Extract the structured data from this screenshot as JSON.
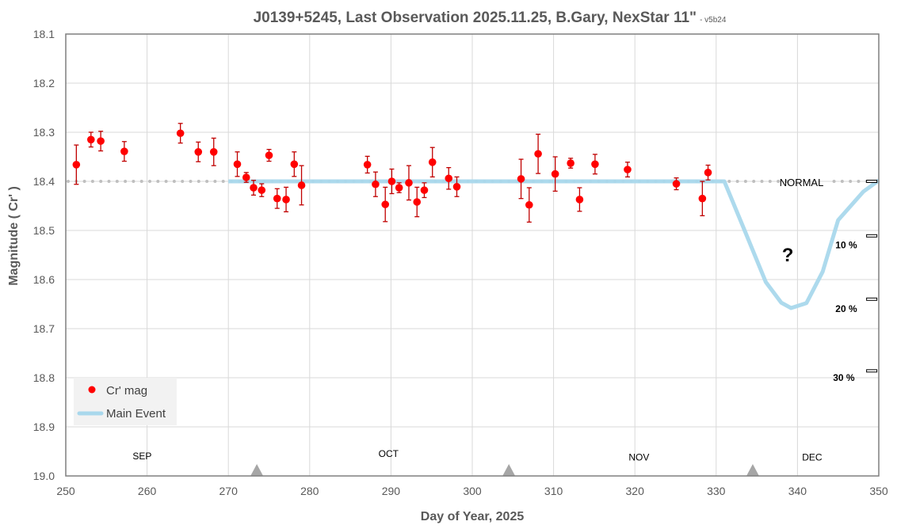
{
  "chart_data": {
    "type": "scatter",
    "title": "J0139+5245, Last Observation 2025.11.25, B.Gary, NexStar 11\"",
    "title_suffix": "- v5b24",
    "xlabel": "Day of Year, 2025",
    "ylabel": "Magnitude ( Cr' )",
    "xlim": [
      250,
      350
    ],
    "ylim": [
      18.1,
      19.0
    ],
    "y_inverted": true,
    "x_ticks": [
      250,
      260,
      270,
      280,
      290,
      300,
      310,
      320,
      330,
      340,
      350
    ],
    "y_ticks": [
      "18.1",
      "18.2",
      "18.3",
      "18.4",
      "18.5",
      "18.6",
      "18.7",
      "18.8",
      "18.9",
      "19.0"
    ],
    "grid": true,
    "legend": {
      "placement": "bottom-left",
      "entries": [
        "Cr' mag",
        "Main Event"
      ]
    },
    "series": [
      {
        "name": "Cr' mag",
        "kind": "scatter-errorbar",
        "color": "#ff0000",
        "error_color": "#c00000",
        "points": [
          [
            251.3,
            18.366,
            0.04
          ],
          [
            253.1,
            18.315,
            0.015
          ],
          [
            254.3,
            18.318,
            0.02
          ],
          [
            257.2,
            18.339,
            0.02
          ],
          [
            264.1,
            18.302,
            0.02
          ],
          [
            266.3,
            18.34,
            0.02
          ],
          [
            268.2,
            18.34,
            0.028
          ],
          [
            271.1,
            18.365,
            0.025
          ],
          [
            272.2,
            18.392,
            0.01
          ],
          [
            273.1,
            18.413,
            0.015
          ],
          [
            274.1,
            18.418,
            0.013
          ],
          [
            275.0,
            18.347,
            0.012
          ],
          [
            276.0,
            18.435,
            0.02
          ],
          [
            277.1,
            18.437,
            0.025
          ],
          [
            278.1,
            18.365,
            0.025
          ],
          [
            279.0,
            18.408,
            0.04
          ],
          [
            287.1,
            18.366,
            0.017
          ],
          [
            288.1,
            18.406,
            0.025
          ],
          [
            289.3,
            18.447,
            0.035
          ],
          [
            290.1,
            18.4,
            0.025
          ],
          [
            291.0,
            18.413,
            0.01
          ],
          [
            292.2,
            18.403,
            0.035
          ],
          [
            293.2,
            18.442,
            0.03
          ],
          [
            294.1,
            18.418,
            0.015
          ],
          [
            295.1,
            18.361,
            0.03
          ],
          [
            297.1,
            18.394,
            0.022
          ],
          [
            298.1,
            18.411,
            0.02
          ],
          [
            306.0,
            18.395,
            0.04
          ],
          [
            307.0,
            18.448,
            0.035
          ],
          [
            308.1,
            18.344,
            0.04
          ],
          [
            310.2,
            18.385,
            0.035
          ],
          [
            312.1,
            18.363,
            0.01
          ],
          [
            313.2,
            18.437,
            0.024
          ],
          [
            315.1,
            18.365,
            0.02
          ],
          [
            319.1,
            18.376,
            0.015
          ],
          [
            325.1,
            18.405,
            0.012
          ],
          [
            328.3,
            18.435,
            0.035
          ],
          [
            329.0,
            18.382,
            0.015
          ]
        ]
      },
      {
        "name": "Main Event",
        "kind": "line",
        "color": "#a9d8ec",
        "points": [
          [
            270,
            18.4
          ],
          [
            331,
            18.4
          ],
          [
            333.5,
            18.5
          ],
          [
            336.1,
            18.605
          ],
          [
            338,
            18.647
          ],
          [
            339.2,
            18.658
          ],
          [
            341.1,
            18.648
          ],
          [
            343.1,
            18.584
          ],
          [
            345,
            18.479
          ],
          [
            348.1,
            18.421
          ],
          [
            350,
            18.398
          ]
        ]
      }
    ],
    "normal_line": {
      "value": 18.4,
      "label": "NORMAL",
      "color": "#bfbfbf"
    },
    "annotations": [
      {
        "text": "?",
        "x": 338.8,
        "y": 18.55
      },
      {
        "text": "10 %",
        "x": 346,
        "y": 18.53
      },
      {
        "text": "20 %",
        "x": 346,
        "y": 18.66
      },
      {
        "text": "30 %",
        "x": 345.7,
        "y": 18.8
      }
    ],
    "depth_markers": [
      18.4,
      18.511,
      18.64,
      18.786
    ],
    "month_labels": [
      {
        "text": "SEP",
        "x": 259.4,
        "y": 18.96
      },
      {
        "text": "OCT",
        "x": 289.7,
        "y": 18.955
      },
      {
        "text": "NOV",
        "x": 320.5,
        "y": 18.962
      },
      {
        "text": "DEC",
        "x": 341.8,
        "y": 18.962
      }
    ],
    "month_boundaries": [
      273.5,
      304.5,
      334.5
    ]
  }
}
